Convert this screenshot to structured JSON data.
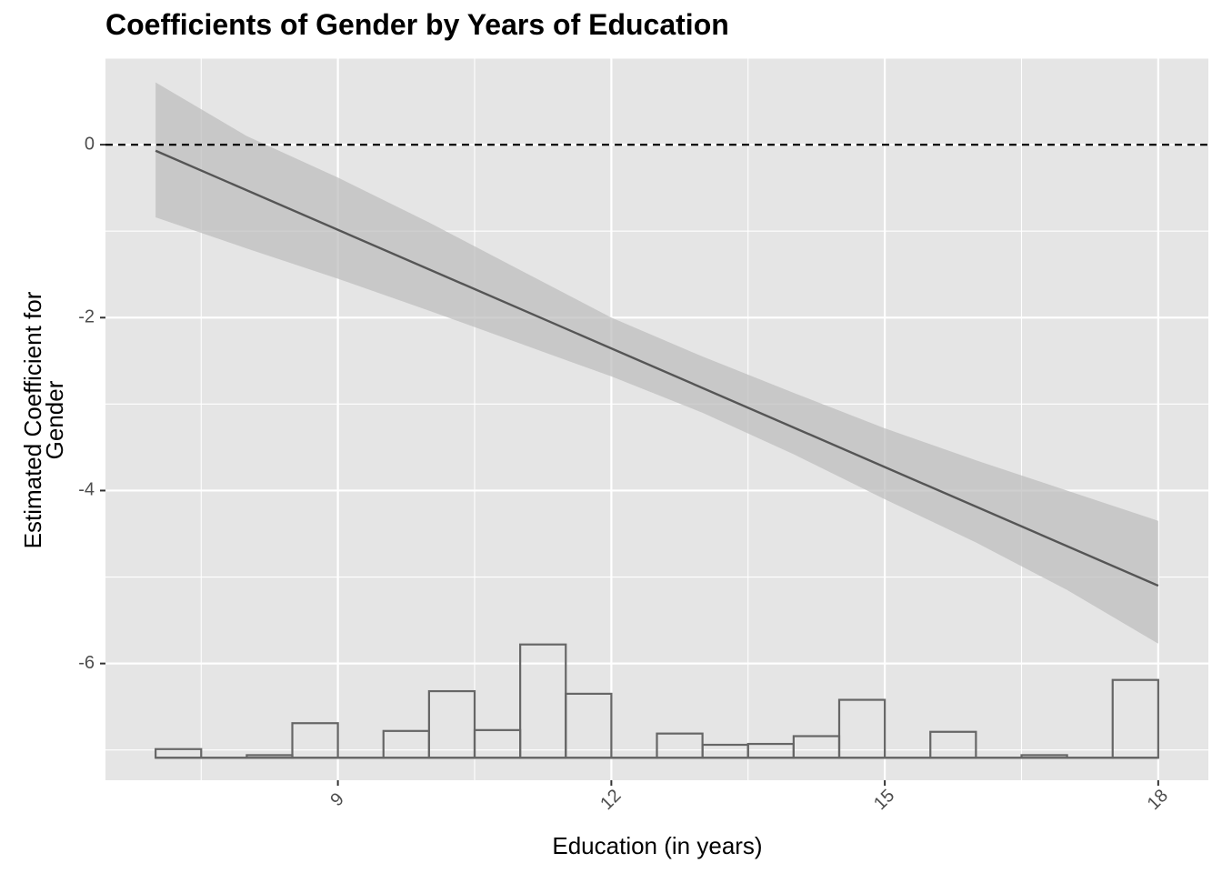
{
  "chart_data": {
    "type": "line",
    "title": "Coefficients of Gender by Years of Education",
    "xlabel": "Education (in years)",
    "ylabel_lines": [
      "Estimated Coefficient for",
      "Gender"
    ],
    "xlim": [
      6.45,
      18.55
    ],
    "ylim": [
      -7.35,
      1.0
    ],
    "x_ticks": [
      9,
      12,
      15,
      18
    ],
    "y_ticks": [
      0,
      -2,
      -4,
      -6
    ],
    "grid": true,
    "reference_line": {
      "y": 0,
      "style": "dashed",
      "color": "#000000"
    },
    "colors": {
      "panel": "#e5e5e5",
      "grid": "#ffffff",
      "line": "#555555",
      "ribbon": "#bdbdbd",
      "hist_edge": "#666666"
    },
    "series": [
      {
        "type": "line",
        "x": [
          7,
          18
        ],
        "y": [
          -0.07,
          -5.1
        ]
      }
    ],
    "confidence_band": {
      "x": [
        7,
        8,
        9,
        10,
        11,
        12,
        13,
        14,
        15,
        16,
        17,
        18
      ],
      "upper": [
        0.72,
        0.1,
        -0.38,
        -0.9,
        -1.45,
        -2.0,
        -2.45,
        -2.87,
        -3.28,
        -3.65,
        -4.0,
        -4.35
      ],
      "lower": [
        -0.84,
        -1.2,
        -1.55,
        -1.92,
        -2.3,
        -2.68,
        -3.1,
        -3.58,
        -4.1,
        -4.6,
        -5.15,
        -5.77
      ]
    },
    "histogram": {
      "baseline": -7.09,
      "bins": [
        {
          "x0": 7.0,
          "x1": 7.5,
          "top": -6.99
        },
        {
          "x0": 7.5,
          "x1": 8.0,
          "top": -7.09
        },
        {
          "x0": 8.0,
          "x1": 8.5,
          "top": -7.06
        },
        {
          "x0": 8.5,
          "x1": 9.0,
          "top": -6.69
        },
        {
          "x0": 9.0,
          "x1": 9.5,
          "top": -7.09
        },
        {
          "x0": 9.5,
          "x1": 10.0,
          "top": -6.78
        },
        {
          "x0": 10.0,
          "x1": 10.5,
          "top": -6.32
        },
        {
          "x0": 10.5,
          "x1": 11.0,
          "top": -6.77
        },
        {
          "x0": 11.0,
          "x1": 11.5,
          "top": -5.78
        },
        {
          "x0": 11.5,
          "x1": 12.0,
          "top": -6.35
        },
        {
          "x0": 12.0,
          "x1": 12.5,
          "top": -7.09
        },
        {
          "x0": 12.5,
          "x1": 13.0,
          "top": -6.81
        },
        {
          "x0": 13.0,
          "x1": 13.5,
          "top": -6.94
        },
        {
          "x0": 13.5,
          "x1": 14.0,
          "top": -6.93
        },
        {
          "x0": 14.0,
          "x1": 14.5,
          "top": -6.84
        },
        {
          "x0": 14.5,
          "x1": 15.0,
          "top": -6.42
        },
        {
          "x0": 15.0,
          "x1": 15.5,
          "top": -7.09
        },
        {
          "x0": 15.5,
          "x1": 16.0,
          "top": -6.79
        },
        {
          "x0": 16.0,
          "x1": 16.5,
          "top": -7.09
        },
        {
          "x0": 16.5,
          "x1": 17.0,
          "top": -7.06
        },
        {
          "x0": 17.0,
          "x1": 17.5,
          "top": -7.09
        },
        {
          "x0": 17.5,
          "x1": 18.0,
          "top": -6.19
        }
      ]
    }
  }
}
